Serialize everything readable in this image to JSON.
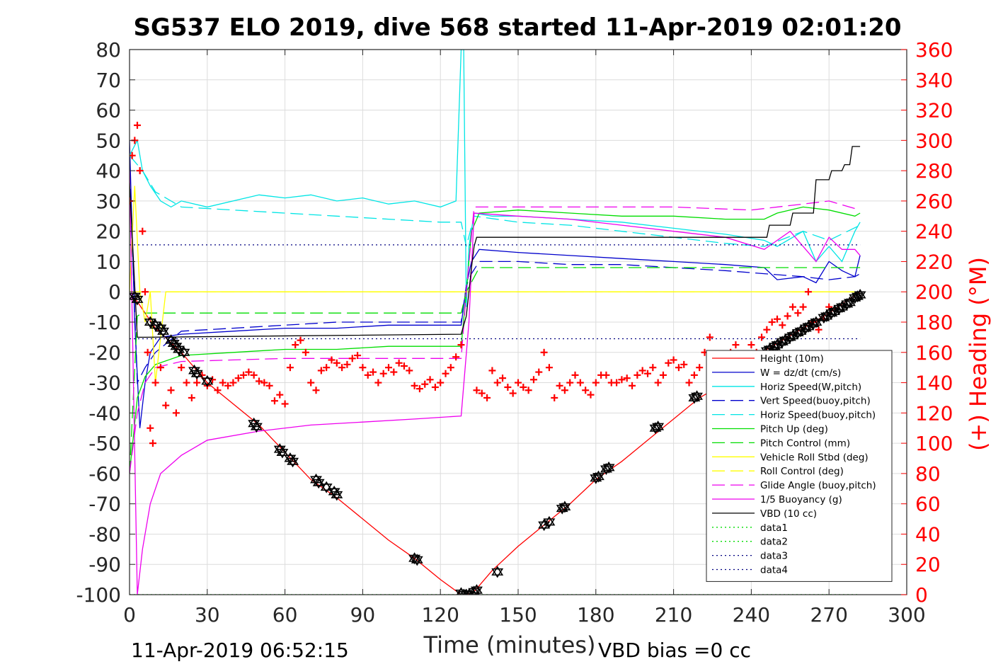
{
  "chart_data": {
    "type": "line",
    "title": "SG537 ELO 2019, dive 568 started 11-Apr-2019 02:01:20",
    "xlabel": "Time (minutes)",
    "ylabel": "",
    "ylabel_right": "(+) Heading (°M)",
    "xlim": [
      0,
      300
    ],
    "ylim": [
      -100,
      80
    ],
    "ylim_right": [
      0,
      360
    ],
    "xticks": [
      0,
      30,
      60,
      90,
      120,
      150,
      180,
      210,
      240,
      270,
      300
    ],
    "yticks": [
      -100,
      -90,
      -80,
      -70,
      -60,
      -50,
      -40,
      -30,
      -20,
      -10,
      0,
      10,
      20,
      30,
      40,
      50,
      60,
      70,
      80
    ],
    "yticks_right": [
      0,
      20,
      40,
      60,
      80,
      100,
      120,
      140,
      160,
      180,
      200,
      220,
      240,
      260,
      280,
      300,
      320,
      340,
      360
    ],
    "grid": true,
    "legend_position": "lower-right",
    "footer_left": "11-Apr-2019 06:52:15",
    "footer_right": "VBD bias =0 cc",
    "series": [
      {
        "name": "Height (10m)",
        "color": "#ff0000",
        "style": "solid",
        "x": [
          2,
          10,
          20,
          30,
          50,
          60,
          70,
          80,
          100,
          110,
          120,
          128,
          130,
          133,
          140,
          150,
          160,
          170,
          180,
          190,
          200,
          210,
          220,
          230,
          240,
          250,
          260,
          270,
          282
        ],
        "y": [
          -2,
          -12,
          -20,
          -30,
          -44,
          -53,
          -62,
          -68,
          -82,
          -88,
          -95,
          -100,
          -100,
          -99,
          -92,
          -84,
          -77,
          -70,
          -62,
          -56,
          -49,
          -42,
          -35,
          -30,
          -22,
          -17,
          -12,
          -7,
          0
        ]
      },
      {
        "name": "W = dz/dt (cm/s)",
        "color": "#0000cc",
        "style": "solid",
        "x": [
          0,
          2,
          4,
          6,
          8,
          12,
          20,
          40,
          60,
          80,
          100,
          120,
          128,
          130,
          132,
          135,
          150,
          170,
          190,
          210,
          230,
          245,
          250,
          260,
          265,
          270,
          275,
          280,
          282
        ],
        "y": [
          50,
          -10,
          -45,
          -30,
          -20,
          -15,
          -14,
          -13,
          -12,
          -12,
          -11,
          -11,
          -11,
          2,
          10,
          14,
          13,
          12,
          11,
          10,
          9,
          8,
          4,
          5,
          3,
          10,
          7,
          5,
          12
        ]
      },
      {
        "name": "Horiz Speed(W,pitch)",
        "color": "#00e5e5",
        "style": "solid",
        "x": [
          0,
          3,
          5,
          8,
          12,
          16,
          20,
          30,
          50,
          60,
          70,
          80,
          90,
          100,
          110,
          120,
          126,
          128,
          129,
          130,
          131,
          133,
          140,
          150,
          170,
          190,
          210,
          230,
          245,
          250,
          260,
          265,
          270,
          275,
          280,
          282
        ],
        "y": [
          45,
          50,
          40,
          35,
          30,
          28,
          30,
          28,
          32,
          31,
          32,
          30,
          31,
          29,
          30,
          28,
          30,
          80,
          80,
          -5,
          15,
          26,
          25,
          25,
          24,
          23,
          21,
          19,
          17,
          15,
          20,
          10,
          15,
          10,
          20,
          23
        ]
      },
      {
        "name": "Vert Speed(buoy,pitch)",
        "color": "#0000cc",
        "style": "dashed",
        "x": [
          0,
          3,
          6,
          10,
          20,
          40,
          60,
          80,
          100,
          120,
          128,
          130,
          132,
          135,
          150,
          170,
          190,
          210,
          230,
          245,
          260,
          270,
          280,
          282
        ],
        "y": [
          40,
          -30,
          -25,
          -20,
          -13,
          -12,
          -11,
          -10,
          -10,
          -10,
          -10,
          2,
          6,
          10,
          10,
          9,
          9,
          8,
          7,
          6,
          5,
          4,
          5,
          6
        ]
      },
      {
        "name": "Horiz Speed(buoy,pitch)",
        "color": "#00e5e5",
        "style": "dashed",
        "x": [
          0,
          5,
          10,
          20,
          40,
          60,
          80,
          100,
          120,
          128,
          130,
          133,
          150,
          170,
          190,
          210,
          230,
          245,
          260,
          270,
          282
        ],
        "y": [
          45,
          40,
          33,
          28,
          27,
          26,
          25,
          24,
          23,
          23,
          15,
          25,
          23,
          22,
          20,
          18,
          16,
          15,
          20,
          17,
          22
        ]
      },
      {
        "name": "Pitch Up (deg)",
        "color": "#00dd00",
        "style": "solid",
        "x": [
          0,
          3,
          6,
          10,
          20,
          40,
          60,
          80,
          100,
          120,
          128,
          130,
          132,
          135,
          150,
          170,
          190,
          210,
          230,
          245,
          250,
          260,
          270,
          280,
          282
        ],
        "y": [
          -60,
          -35,
          -28,
          -24,
          -21,
          -20,
          -19,
          -19,
          -18,
          -18,
          -18,
          0,
          20,
          26,
          27,
          26,
          25,
          25,
          24,
          24,
          26,
          28,
          27,
          25,
          26
        ]
      },
      {
        "name": "Pitch Control (mm)",
        "color": "#00dd00",
        "style": "dashed",
        "x": [
          0,
          3,
          5,
          10,
          128,
          130,
          135,
          282
        ],
        "y": [
          -60,
          -8,
          -7,
          -7,
          -7,
          0,
          8,
          8
        ]
      },
      {
        "name": "Vehicle Roll Stbd (deg)",
        "color": "#ffff00",
        "style": "solid",
        "x": [
          0,
          2,
          4,
          6,
          8,
          10,
          14,
          20,
          25,
          30,
          40,
          60,
          80,
          100,
          120,
          130,
          140,
          160,
          180,
          200,
          220,
          240,
          250,
          260,
          270,
          280,
          282
        ],
        "y": [
          0,
          35,
          0,
          -10,
          0,
          -30,
          0,
          0,
          0,
          0,
          0,
          0,
          0,
          0,
          0,
          0,
          0,
          0,
          0,
          0,
          0,
          0,
          0,
          0,
          0,
          0,
          0
        ]
      },
      {
        "name": "Roll Control (deg)",
        "color": "#ffff00",
        "style": "dashed",
        "x": [
          0,
          282
        ],
        "y": [
          0,
          0
        ]
      },
      {
        "name": "Glide Angle (buoy,pitch)",
        "color": "#ee00ee",
        "style": "dashed",
        "x": [
          0,
          3,
          6,
          10,
          20,
          60,
          100,
          128,
          130,
          133,
          150,
          180,
          210,
          240,
          260,
          270,
          282
        ],
        "y": [
          -60,
          -40,
          -30,
          -25,
          -23,
          -22,
          -22,
          -22,
          0,
          28,
          28,
          28,
          28,
          27,
          29,
          30,
          27
        ]
      },
      {
        "name": "1/5 Buoyancy (g)",
        "color": "#ee00ee",
        "style": "solid",
        "x": [
          0,
          3,
          5,
          8,
          12,
          20,
          30,
          50,
          70,
          90,
          110,
          128,
          131,
          133,
          150,
          170,
          190,
          210,
          230,
          245,
          255,
          265,
          270,
          275,
          280,
          282
        ],
        "y": [
          40,
          -100,
          -85,
          -70,
          -60,
          -54,
          -49,
          -46,
          -44,
          -43,
          -42,
          -41,
          -10,
          26,
          25,
          24,
          22,
          20,
          18,
          14,
          20,
          10,
          18,
          14,
          14,
          12
        ]
      },
      {
        "name": "VBD (10 cc)",
        "color": "#000000",
        "style": "solid",
        "x": [
          0,
          3,
          5,
          6,
          128,
          130,
          131,
          132,
          133,
          134,
          135,
          140,
          200,
          246,
          247,
          255,
          256,
          264,
          265,
          270,
          271,
          275,
          276,
          278,
          279,
          282
        ],
        "y": [
          36,
          -15,
          -15,
          -15,
          -14,
          -8,
          0,
          8,
          15,
          18,
          18,
          18,
          18,
          18,
          22,
          22,
          26,
          26,
          37,
          37,
          40,
          40,
          42,
          42,
          48,
          48
        ]
      },
      {
        "name": "data1",
        "color": "#00dd00",
        "style": "dotted",
        "x": [
          0,
          282
        ],
        "y": [
          -100,
          -100
        ]
      },
      {
        "name": "data2",
        "color": "#00dd00",
        "style": "dotted",
        "x": [
          0,
          282
        ],
        "y": [
          -100,
          -100
        ]
      },
      {
        "name": "data3",
        "color": "#000080",
        "style": "dotted",
        "x": [
          0,
          282
        ],
        "y": [
          15.5,
          15.5
        ]
      },
      {
        "name": "data4",
        "color": "#000080",
        "style": "dotted",
        "x": [
          0,
          282
        ],
        "y": [
          -15.5,
          -15.5
        ]
      }
    ],
    "heading_series": {
      "name": "Heading",
      "color": "#ff0000",
      "marker": "+",
      "x": [
        0,
        1,
        2,
        3,
        4,
        5,
        6,
        7,
        8,
        9,
        10,
        12,
        14,
        16,
        18,
        20,
        22,
        24,
        26,
        28,
        30,
        32,
        34,
        36,
        38,
        40,
        42,
        44,
        46,
        48,
        50,
        52,
        54,
        56,
        58,
        60,
        62,
        64,
        66,
        68,
        70,
        72,
        74,
        76,
        78,
        80,
        82,
        84,
        86,
        88,
        90,
        92,
        94,
        96,
        98,
        100,
        102,
        104,
        106,
        108,
        110,
        112,
        114,
        116,
        118,
        120,
        122,
        124,
        126,
        128,
        134,
        136,
        138,
        140,
        142,
        144,
        146,
        148,
        150,
        152,
        154,
        156,
        158,
        160,
        162,
        164,
        166,
        168,
        170,
        172,
        174,
        176,
        178,
        180,
        182,
        184,
        186,
        188,
        190,
        192,
        194,
        196,
        198,
        200,
        202,
        204,
        206,
        208,
        210,
        212,
        214,
        216,
        218,
        220,
        222,
        224,
        226,
        228,
        230,
        232,
        234,
        236,
        238,
        240,
        242,
        244,
        246,
        248,
        250,
        252,
        254,
        256,
        258,
        260,
        262,
        264,
        266,
        268,
        270
      ],
      "y": [
        260,
        290,
        300,
        310,
        280,
        240,
        200,
        160,
        110,
        100,
        140,
        150,
        125,
        135,
        120,
        150,
        140,
        130,
        140,
        145,
        138,
        142,
        135,
        140,
        138,
        140,
        143,
        145,
        147,
        145,
        141,
        140,
        138,
        128,
        132,
        126,
        150,
        165,
        168,
        160,
        140,
        135,
        148,
        150,
        155,
        153,
        150,
        152,
        156,
        158,
        150,
        145,
        147,
        140,
        146,
        150,
        147,
        153,
        151,
        148,
        138,
        136,
        139,
        142,
        137,
        140,
        146,
        150,
        157,
        165,
        135,
        133,
        130,
        148,
        140,
        143,
        137,
        133,
        140,
        137,
        135,
        142,
        147,
        160,
        150,
        130,
        138,
        135,
        140,
        145,
        140,
        135,
        132,
        140,
        145,
        145,
        140,
        140,
        142,
        143,
        138,
        145,
        148,
        146,
        150,
        140,
        145,
        153,
        155,
        150,
        152,
        140,
        145,
        150,
        160,
        170,
        155,
        140,
        155,
        160,
        165,
        150,
        140,
        165,
        160,
        170,
        175,
        180,
        182,
        178,
        184,
        190,
        186,
        190,
        200,
        180,
        175,
        182,
        190
      ]
    },
    "depth_markers": {
      "marker": "triangle-star",
      "x": [
        2,
        3,
        8,
        10,
        12,
        13,
        16,
        17,
        18,
        19,
        21,
        25,
        26,
        30,
        48,
        49,
        58,
        59,
        62,
        63,
        72,
        73,
        76,
        79,
        80,
        110,
        111,
        128,
        129,
        130,
        131,
        133,
        134,
        142,
        160,
        162,
        167,
        168,
        180,
        181,
        184,
        185,
        203,
        204,
        218,
        219,
        246,
        247,
        249,
        250,
        252,
        253,
        255,
        256,
        258,
        259,
        261,
        262,
        264,
        265,
        268,
        269,
        271,
        272,
        274,
        275,
        277,
        278,
        280,
        281,
        282
      ],
      "y": [
        -1.5,
        -2.5,
        -10,
        -11,
        -12,
        -13,
        -16,
        -17,
        -18,
        -19,
        -20,
        -26,
        -27,
        -29.5,
        -43.5,
        -44.5,
        -52,
        -53,
        -55,
        -56,
        -62,
        -63,
        -64.5,
        -66,
        -67,
        -88,
        -88.5,
        -99.5,
        -100,
        -100,
        -100,
        -99,
        -98.5,
        -92.5,
        -77,
        -76,
        -71.5,
        -71,
        -61.5,
        -61,
        -58.5,
        -58,
        -45,
        -44.5,
        -35,
        -34.5,
        -19.5,
        -19,
        -18,
        -17.5,
        -16.5,
        -16,
        -15,
        -14.5,
        -13.5,
        -13,
        -12,
        -11.5,
        -10.5,
        -10,
        -8.5,
        -8,
        -7,
        -6.5,
        -5.5,
        -5,
        -4,
        -3.5,
        -2,
        -1.5,
        -1
      ]
    }
  }
}
